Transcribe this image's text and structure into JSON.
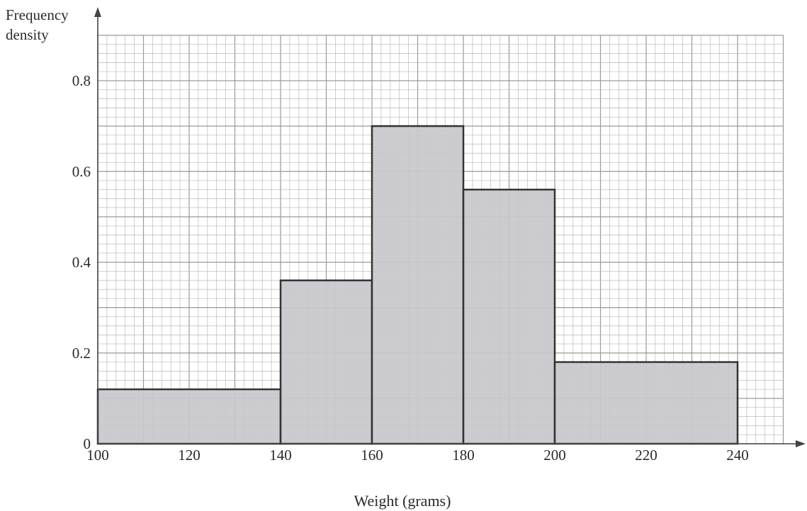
{
  "chart_data": {
    "type": "histogram",
    "title": "",
    "ylabel_line1": "Frequency",
    "ylabel_line2": "density",
    "xlabel": "Weight (grams)",
    "xlim": [
      100,
      250
    ],
    "ylim": [
      0,
      0.9
    ],
    "xticks": [
      100,
      120,
      140,
      160,
      180,
      200,
      220,
      240
    ],
    "yticks": [
      0,
      0.2,
      0.4,
      0.6,
      0.8
    ],
    "ytick_labels": [
      "0",
      "0.2",
      "0.4",
      "0.6",
      "0.8"
    ],
    "bins": [
      {
        "from": 100,
        "to": 140,
        "density": 0.12
      },
      {
        "from": 140,
        "to": 160,
        "density": 0.36
      },
      {
        "from": 160,
        "to": 180,
        "density": 0.7
      },
      {
        "from": 180,
        "to": 200,
        "density": 0.56
      },
      {
        "from": 200,
        "to": 240,
        "density": 0.18
      }
    ],
    "grid": true,
    "colors": {
      "bar_fill": "#c8c8cc",
      "bar_edge": "#333333",
      "grid": "#b9b9b9",
      "axis": "#444444"
    }
  }
}
